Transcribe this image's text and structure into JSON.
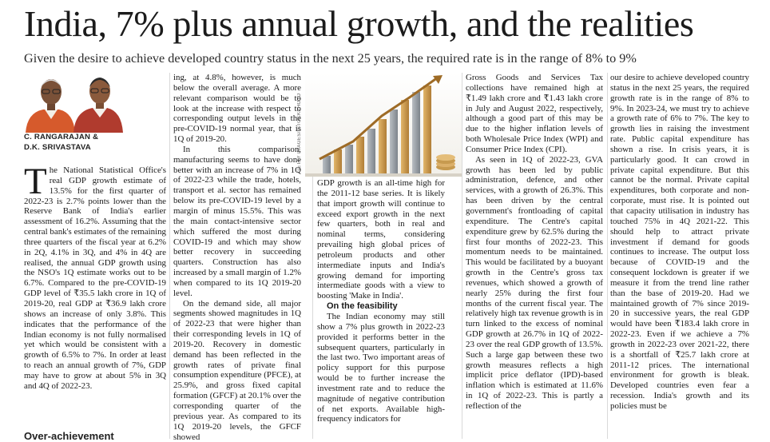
{
  "article": {
    "headline": "India, 7% plus annual growth, and the realities",
    "deck": "Given the desire to achieve developed country status in the next 25 years, the required rate is in the range of 8% to 9%",
    "byline": {
      "author1": "C. RANGARAJAN &",
      "author2": "D.K. SRIVASTAVA"
    },
    "photo_credit": "GETTY IMAGES/ISTOCKPHOTO",
    "col1": {
      "p1": "The National Statistical Office's real GDP growth estimate of 13.5% for the first quarter of 2022-23 is 2.7% points lower than the Reserve Bank of India's earlier assessment of 16.2%. Assuming that the central bank's estimates of the remaining three quarters of the fiscal year at 6.2% in 2Q, 4.1% in 3Q, and 4% in 4Q are realised, the annual GDP growth using the NSO's 1Q estimate works out to be 6.7%. Compared to the pre-COVID-19 GDP level of ₹35.5 lakh crore in 1Q of 2019-20, real GDP at ₹36.9 lakh crore shows an increase of only 3.8%. This indicates that the performance of the Indian economy is not fully normalised yet which would be consistent with a growth of 6.5% to 7%. In order at least to reach an annual growth of 7%, GDP may have to grow at about 5% in 3Q and 4Q of 2022-23.",
      "bottom_subhead": "Over-achievement"
    },
    "col2": {
      "p1": "ing, at 4.8%, however, is much below the overall average. A more relevant comparison would be to look at the increase with respect to corresponding output levels in the pre-COVID-19 normal year, that is 1Q of 2019-20.",
      "p2": "In this comparison, manufacturing seems to have done better with an increase of 7% in 1Q of 2022-23 while the trade, hotels, transport et al. sector has remained below its pre-COVID-19 level by a margin of minus 15.5%. This was the main contact-intensive sector which suffered the most during COVID-19 and which may show better recovery in succeeding quarters. Construction has also increased by a small margin of 1.2% when compared to its 1Q 2019-20 level.",
      "p3": "On the demand side, all major segments showed magnitudes in 1Q of 2022-23 that were higher than their corresponding levels in 1Q of 2019-20. Recovery in domestic demand has been reflected in the growth rates of private final consumption expenditure (PFCE), at 25.9%, and gross fixed capital formation (GFCF) at 20.1% over the corresponding quarter of the previous year. As compared to its 1Q 2019-20 levels, the GFCF showed"
    },
    "col3": {
      "p1": "GDP growth is an all-time high for the 2011-12 base series. It is likely that import growth will continue to exceed export growth in the next few quarters, both in real and nominal terms, considering prevailing high global prices of petroleum products and other intermediate inputs and India's growing demand for importing intermediate goods with a view to boosting 'Make in India'.",
      "subhead": "On the feasibility",
      "p2": "The Indian economy may still show a 7% plus growth in 2022-23 provided it performs better in the subsequent quarters, particularly in the last two. Two important areas of policy support for this purpose would be to further increase the investment rate and to reduce the magnitude of negative contribution of net exports. Available high-frequency indicators for"
    },
    "col4": {
      "p1": "Gross Goods and Services Tax collections have remained high at ₹1.49 lakh crore and ₹1.43 lakh crore in July and August 2022, respectively, although a good part of this may be due to the higher inflation levels of both Wholesale Price Index (WPI) and Consumer Price Index (CPI).",
      "p2": "As seen in 1Q of 2022-23, GVA growth has been led by public administration, defence, and other services, with a growth of 26.3%. This has been driven by the central government's frontloading of capital expenditure. The Centre's capital expenditure grew by 62.5% during the first four months of 2022-23. This momentum needs to be maintained. This would be facilitated by a buoyant growth in the Centre's gross tax revenues, which showed a growth of nearly 25% during the first four months of the current fiscal year. The relatively high tax revenue growth is in turn linked to the excess of nominal GDP growth at 26.7% in 1Q of 2022-23 over the real GDP growth of 13.5%. Such a large gap between these two growth measures reflects a high implicit price deflator (IPD)-based inflation which is estimated at 11.6% in 1Q of 2022-23. This is partly a reflection of the"
    },
    "col5": {
      "p1": "our desire to achieve developed country status in the next 25 years, the required growth rate is in the range of 8% to 9%. In 2023-24, we must try to achieve a growth rate of 6% to 7%. The key to growth lies in raising the investment rate. Public capital expenditure has shown a rise. In crisis years, it is particularly good. It can crowd in private capital expenditure. But this cannot be the normal. Private capital expenditures, both corporate and non-corporate, must rise. It is pointed out that capacity utilisation in industry has touched 75% in 4Q 2021-22. This should help to attract private investment if demand for goods continues to increase. The output loss because of COVID-19 and the consequent lockdown is greater if we measure it from the trend line rather than the base of 2019-20. Had we maintained growth of 7% since 2019-20 in successive years, the real GDP would have been ₹183.4 lakh crore in 2022-23. Even if we achieve a 7% growth in 2022-23 over 2021-22, there is a shortfall of ₹25.7 lakh crore at 2011-12 prices. The international environment for growth is bleak. Developed countries even fear a recession. India's growth and its policies must be"
    }
  },
  "colors": {
    "text": "#1a1a1a",
    "divider": "#d9d9d9",
    "chart_gold": "#c9974a",
    "chart_gray": "#8d949b"
  }
}
